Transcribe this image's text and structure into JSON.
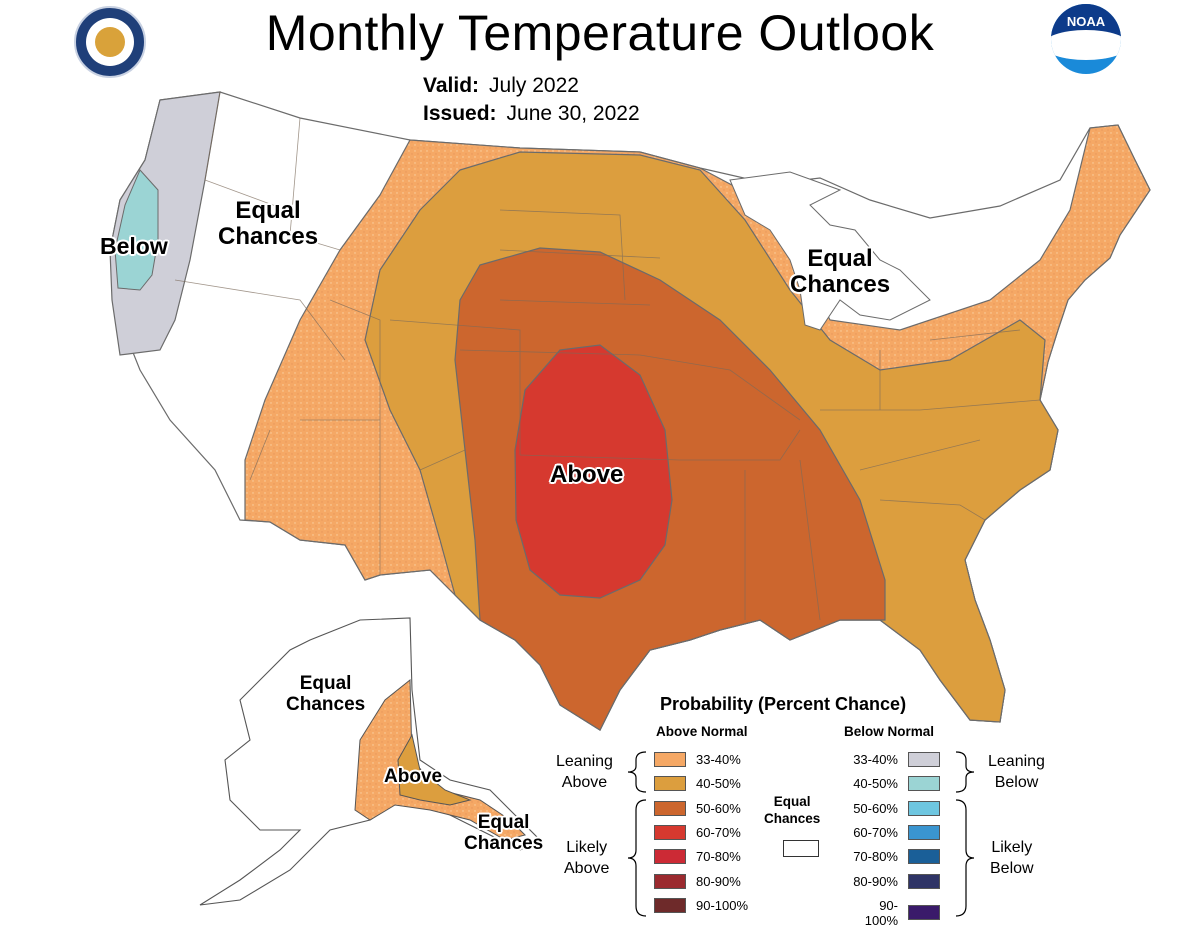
{
  "header": {
    "title": "Monthly Temperature Outlook",
    "valid_label": "Valid:",
    "valid_value": "July 2022",
    "issued_label": "Issued:",
    "issued_value": "June 30, 2022"
  },
  "logos": {
    "left": "commerce-seal",
    "right": "noaa-logo",
    "noaa_text": "NOAA"
  },
  "map_labels": {
    "below": "Below",
    "equal_west_1": "Equal",
    "equal_west_2": "Chances",
    "equal_east_1": "Equal",
    "equal_east_2": "Chances",
    "above_main": "Above",
    "ak_equal_north_1": "Equal",
    "ak_equal_north_2": "Chances",
    "ak_above": "Above",
    "ak_equal_south_1": "Equal",
    "ak_equal_south_2": "Chances"
  },
  "legend": {
    "title": "Probability (Percent Chance)",
    "above_header": "Above Normal",
    "below_header": "Below Normal",
    "above_items": [
      {
        "range": "33-40%",
        "color": "#f5a865"
      },
      {
        "range": "40-50%",
        "color": "#dc9e3e"
      },
      {
        "range": "50-60%",
        "color": "#cc662e"
      },
      {
        "range": "60-70%",
        "color": "#d6392f"
      },
      {
        "range": "70-80%",
        "color": "#cc2a35"
      },
      {
        "range": "80-90%",
        "color": "#9b2a2f"
      },
      {
        "range": "90-100%",
        "color": "#6e2a2a"
      }
    ],
    "below_items": [
      {
        "range": "33-40%",
        "color": "#cfcfd8"
      },
      {
        "range": "40-50%",
        "color": "#9bd4d4"
      },
      {
        "range": "50-60%",
        "color": "#6ec6e0"
      },
      {
        "range": "60-70%",
        "color": "#3a95d0"
      },
      {
        "range": "70-80%",
        "color": "#1a5f98"
      },
      {
        "range": "80-90%",
        "color": "#2f3466"
      },
      {
        "range": "90-100%",
        "color": "#3a1a6a"
      }
    ],
    "leaning_above_1": "Leaning",
    "leaning_above_2": "Above",
    "likely_above_1": "Likely",
    "likely_above_2": "Above",
    "leaning_below_1": "Leaning",
    "leaning_below_2": "Below",
    "likely_below_1": "Likely",
    "likely_below_2": "Below",
    "equal_1": "Equal",
    "equal_2": "Chances"
  },
  "colors": {
    "lean_above": "#f5a865",
    "above_40": "#dc9e3e",
    "above_50": "#cc662e",
    "above_60": "#d6392f",
    "lean_below": "#cfcfd8",
    "below_40": "#9bd4d4",
    "border": "#6b6b6b",
    "state_line": "#7a6a5a"
  }
}
